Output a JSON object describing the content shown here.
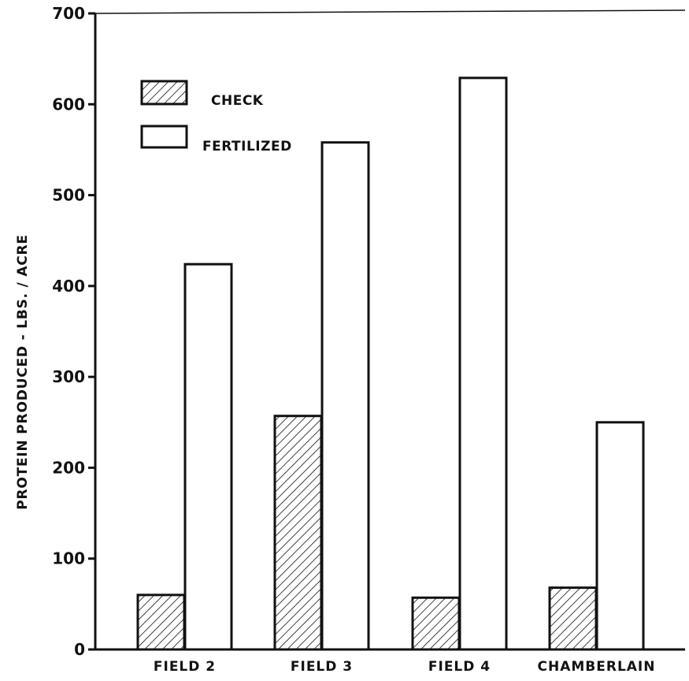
{
  "chart_data": {
    "type": "bar",
    "title": "",
    "xlabel": "",
    "ylabel": "PROTEIN PRODUCED - LBS. / ACRE",
    "ylim": [
      0,
      700
    ],
    "yticks": [
      0,
      100,
      200,
      300,
      400,
      500,
      600,
      700
    ],
    "categories": [
      "FIELD 2",
      "FIELD 3",
      "FIELD 4",
      "CHAMBERLAIN"
    ],
    "series": [
      {
        "name": "CHECK",
        "pattern": "hatched",
        "values": [
          60,
          257,
          57,
          68
        ]
      },
      {
        "name": "FERTILIZED",
        "pattern": "open",
        "values": [
          424,
          558,
          629,
          250
        ]
      }
    ],
    "legend_position": "top-left",
    "grid": false
  },
  "colors": {
    "ink": "#111111",
    "background": "#ffffff"
  }
}
